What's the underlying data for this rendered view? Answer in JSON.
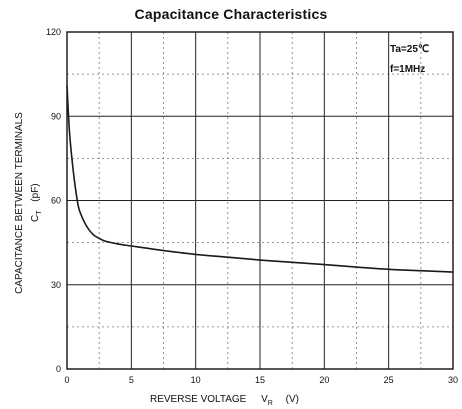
{
  "chart_data": {
    "type": "line",
    "title": "Capacitance Characteristics",
    "xlabel_text": "REVERSE VOLTAGE",
    "xlabel_symbol_main": "V",
    "xlabel_symbol_sub": "R",
    "xlabel_unit": "(V)",
    "ylabel_line1": "CAPACITANCE BETWEEN TERMINALS",
    "ylabel_symbol_main": "C",
    "ylabel_symbol_sub": "T",
    "ylabel_unit": "(pF)",
    "annotation_temp": "Ta=25℃",
    "annotation_freq": "f=1MHz",
    "xlim": [
      0,
      30
    ],
    "ylim": [
      0,
      120
    ],
    "x_ticks": [
      0,
      5,
      10,
      15,
      20,
      25,
      30
    ],
    "y_ticks": [
      0,
      30,
      60,
      90,
      120
    ],
    "grid": true,
    "series": [
      {
        "x": [
          0,
          0.2,
          0.5,
          0.8,
          1.0,
          1.5,
          2.0,
          2.5,
          3.0,
          4.0,
          5.0,
          7.0,
          10.0,
          12.5,
          15.0,
          17.5,
          20.0,
          22.5,
          25.0,
          27.5,
          30.0
        ],
        "y": [
          101,
          84,
          70,
          60,
          56,
          51,
          48,
          46.5,
          45.5,
          44.5,
          43.8,
          42.5,
          40.8,
          39.8,
          38.8,
          38,
          37.2,
          36.3,
          35.5,
          35,
          34.5
        ]
      }
    ]
  },
  "colors": {
    "curve": "#1a1a1a",
    "grid_major": "#222222",
    "grid_minor": "#777777"
  }
}
